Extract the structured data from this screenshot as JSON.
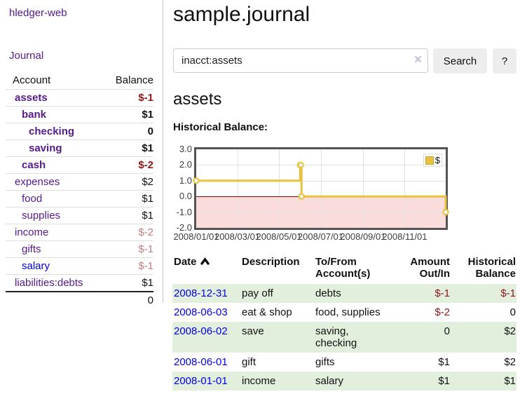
{
  "sidebar": {
    "brand": "hledger-web",
    "journal_label": "Journal",
    "table": {
      "headers": [
        "Account",
        "Balance"
      ],
      "rows": [
        {
          "name": "assets",
          "indent": 0,
          "bold": true,
          "balance": "$-1",
          "neg": "strong"
        },
        {
          "name": "bank",
          "indent": 1,
          "bold": true,
          "balance": "$1"
        },
        {
          "name": "checking",
          "indent": 2,
          "bold": true,
          "balance": "0"
        },
        {
          "name": "saving",
          "indent": 2,
          "bold": true,
          "balance": "$1"
        },
        {
          "name": "cash",
          "indent": 1,
          "bold": true,
          "balance": "$-2",
          "neg": "strong"
        },
        {
          "name": "expenses",
          "indent": 0,
          "bold": false,
          "balance": "$2"
        },
        {
          "name": "food",
          "indent": 1,
          "bold": false,
          "balance": "$1"
        },
        {
          "name": "supplies",
          "indent": 1,
          "bold": false,
          "balance": "$1"
        },
        {
          "name": "income",
          "indent": 0,
          "bold": false,
          "balance": "$-2",
          "neg": "soft"
        },
        {
          "name": "gifts",
          "indent": 1,
          "bold": false,
          "balance": "$-1",
          "neg": "soft"
        },
        {
          "name": "salary",
          "indent": 1,
          "bold": false,
          "balance": "$-1",
          "neg": "soft",
          "blue": true
        },
        {
          "name": "liabilities:debts",
          "indent": 0,
          "bold": false,
          "balance": "$1"
        }
      ],
      "total": "0"
    }
  },
  "main": {
    "title": "sample.journal",
    "search": {
      "value": "inacct:assets",
      "clear_icon": "×",
      "button_label": "Search",
      "help_label": "?"
    },
    "account_heading": "assets",
    "chart_label": "Historical Balance:"
  },
  "chart_data": {
    "type": "line",
    "step": true,
    "title": "Historical Balance:",
    "legend": [
      {
        "label": "$",
        "color": "#e8c23f"
      }
    ],
    "series": [
      {
        "name": "$",
        "points": [
          [
            "2008-01-01",
            1
          ],
          [
            "2008-06-01",
            2
          ],
          [
            "2008-06-02",
            2
          ],
          [
            "2008-06-03",
            0
          ],
          [
            "2008-12-31",
            -1
          ]
        ]
      }
    ],
    "x_range": [
      "2008-01-01",
      "2008-12-31"
    ],
    "ylim": [
      -2,
      3
    ],
    "y_ticks": [
      3,
      2,
      1,
      0,
      -1,
      -2
    ],
    "x_ticks": [
      {
        "label": "2008/01/01",
        "date": "2008-01-01"
      },
      {
        "label": "2008/03/01",
        "date": "2008-03-01"
      },
      {
        "label": "2008/05/01",
        "date": "2008-05-01"
      },
      {
        "label": "2008/07/01",
        "date": "2008-07-01"
      },
      {
        "label": "2008/09/01",
        "date": "2008-09-01"
      },
      {
        "label": "2008/11/01",
        "date": "2008-11-01"
      }
    ],
    "line_color": "#e8c23f",
    "negative_region_color": "#fbdcdc",
    "zero_line_color": "#8b0000",
    "grid": true,
    "legend_position": "top-right"
  },
  "register": {
    "headers": {
      "date": "Date",
      "description": "Description",
      "accounts": "To/From Account(s)",
      "amount": "Amount Out/In",
      "balance": "Historical Balance"
    },
    "rows": [
      {
        "date": "2008-12-31",
        "description": "pay off",
        "accounts": "debts",
        "amount": "$-1",
        "amount_neg": true,
        "balance": "$-1",
        "balance_neg": true
      },
      {
        "date": "2008-06-03",
        "description": "eat & shop",
        "accounts": "food, supplies",
        "amount": "$-2",
        "amount_neg": true,
        "balance": "0",
        "balance_neg": false
      },
      {
        "date": "2008-06-02",
        "description": "save",
        "accounts": "saving, checking",
        "amount": "0",
        "amount_neg": false,
        "balance": "$2",
        "balance_neg": false
      },
      {
        "date": "2008-06-01",
        "description": "gift",
        "accounts": "gifts",
        "amount": "$1",
        "amount_neg": false,
        "balance": "$2",
        "balance_neg": false
      },
      {
        "date": "2008-01-01",
        "description": "income",
        "accounts": "salary",
        "amount": "$1",
        "amount_neg": false,
        "balance": "$1",
        "balance_neg": false
      }
    ]
  }
}
